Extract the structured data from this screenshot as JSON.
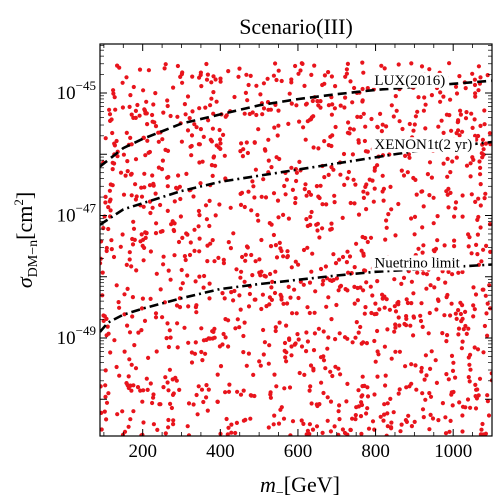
{
  "chart_data": {
    "type": "scatter",
    "title": "Scenario(III)",
    "xlabel": {
      "main": "m",
      "subscript": "−",
      "unit": "[GeV]"
    },
    "ylabel": {
      "main": "σ",
      "subscript": "DM−n",
      "unit": "[cm",
      "unit_sup": "2",
      "unit_end": "]"
    },
    "x_scale": "linear",
    "y_scale": "log",
    "xlim": [
      90,
      1100
    ],
    "ylim_exponent": [
      -50.6,
      -44.2
    ],
    "x_ticks": [
      {
        "value": 200,
        "label": "200"
      },
      {
        "value": 400,
        "label": "400"
      },
      {
        "value": 600,
        "label": "600"
      },
      {
        "value": 800,
        "label": "800"
      },
      {
        "value": 1000,
        "label": "1000"
      }
    ],
    "y_ticks": [
      {
        "exponent": -45,
        "base": "10",
        "sup": "−45"
      },
      {
        "exponent": -47,
        "base": "10",
        "sup": "−47"
      },
      {
        "exponent": -49,
        "base": "10",
        "sup": "−49"
      }
    ],
    "scatter_color": "#e8141c",
    "scatter_point_count": 1400,
    "scatter_x_range": [
      90,
      1100
    ],
    "scatter_log10_y_range": [
      -50.6,
      -44.5
    ],
    "limit_curves": [
      {
        "name": "LUX(2016)",
        "style": "dashed",
        "points_log10": [
          [
            90,
            -46.2
          ],
          [
            150,
            -45.9
          ],
          [
            200,
            -45.75
          ],
          [
            300,
            -45.5
          ],
          [
            400,
            -45.35
          ],
          [
            500,
            -45.2
          ],
          [
            600,
            -45.1
          ],
          [
            700,
            -45.02
          ],
          [
            800,
            -44.95
          ],
          [
            900,
            -44.9
          ],
          [
            1000,
            -44.85
          ],
          [
            1100,
            -44.8
          ]
        ]
      },
      {
        "name": "XENON1t(2 yr)",
        "style": "dashdot",
        "points_log10": [
          [
            90,
            -47.15
          ],
          [
            150,
            -46.9
          ],
          [
            200,
            -46.8
          ],
          [
            300,
            -46.6
          ],
          [
            400,
            -46.45
          ],
          [
            500,
            -46.35
          ],
          [
            600,
            -46.25
          ],
          [
            700,
            -46.15
          ],
          [
            800,
            -46.05
          ],
          [
            900,
            -45.95
          ],
          [
            1000,
            -45.87
          ],
          [
            1100,
            -45.8
          ]
        ]
      },
      {
        "name": "Nuetrino limit",
        "style": "dashdot",
        "points_log10": [
          [
            90,
            -48.9
          ],
          [
            110,
            -48.75
          ],
          [
            150,
            -48.62
          ],
          [
            200,
            -48.52
          ],
          [
            300,
            -48.35
          ],
          [
            400,
            -48.2
          ],
          [
            500,
            -48.12
          ],
          [
            600,
            -48.05
          ],
          [
            700,
            -47.98
          ],
          [
            800,
            -47.92
          ],
          [
            900,
            -47.88
          ],
          [
            1000,
            -47.84
          ],
          [
            1100,
            -47.8
          ]
        ]
      }
    ],
    "grid": false,
    "legend": "none"
  }
}
